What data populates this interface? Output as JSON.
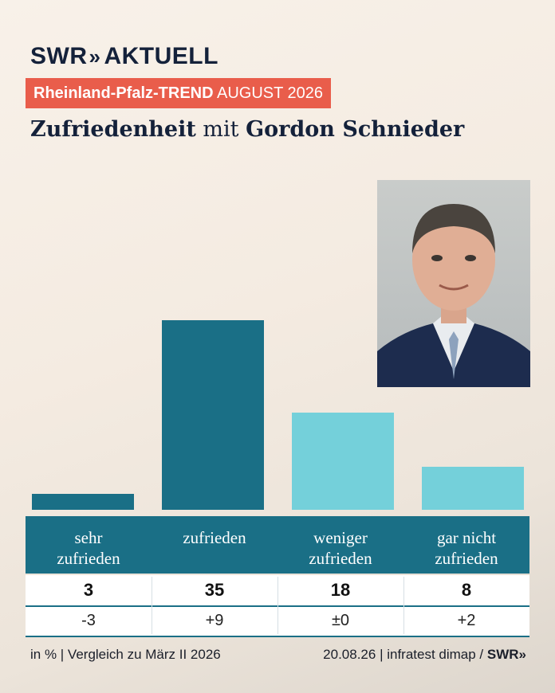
{
  "brand": {
    "name": "SWR",
    "chevrons": "»",
    "section": "AKTUELL"
  },
  "banner": {
    "bold": "Rheinland-Pfalz-TREND",
    "rest": "AUGUST 2026"
  },
  "headline": {
    "part1": "Zufriedenheit",
    "part2": " mit ",
    "part3": "Gordon Schnieder"
  },
  "colors": {
    "dark_teal": "#1a6f86",
    "light_teal": "#74d0da",
    "banner_red": "#e95d4b",
    "navy": "#14213a"
  },
  "chart_data": {
    "type": "bar",
    "categories": [
      "sehr zufrieden",
      "zufrieden",
      "weniger zufrieden",
      "gar nicht zufrieden"
    ],
    "values": [
      3,
      35,
      18,
      8
    ],
    "changes": [
      "-3",
      "+9",
      "±0",
      "+2"
    ],
    "unit": "%",
    "ylim": [
      0,
      35
    ],
    "bar_colors": [
      "#1a6f86",
      "#1a6f86",
      "#74d0da",
      "#74d0da"
    ]
  },
  "footer": {
    "left": "in % | Vergleich zu März II 2026",
    "right": "20.08.26 | infratest dimap / ",
    "brand": "SWR»"
  }
}
